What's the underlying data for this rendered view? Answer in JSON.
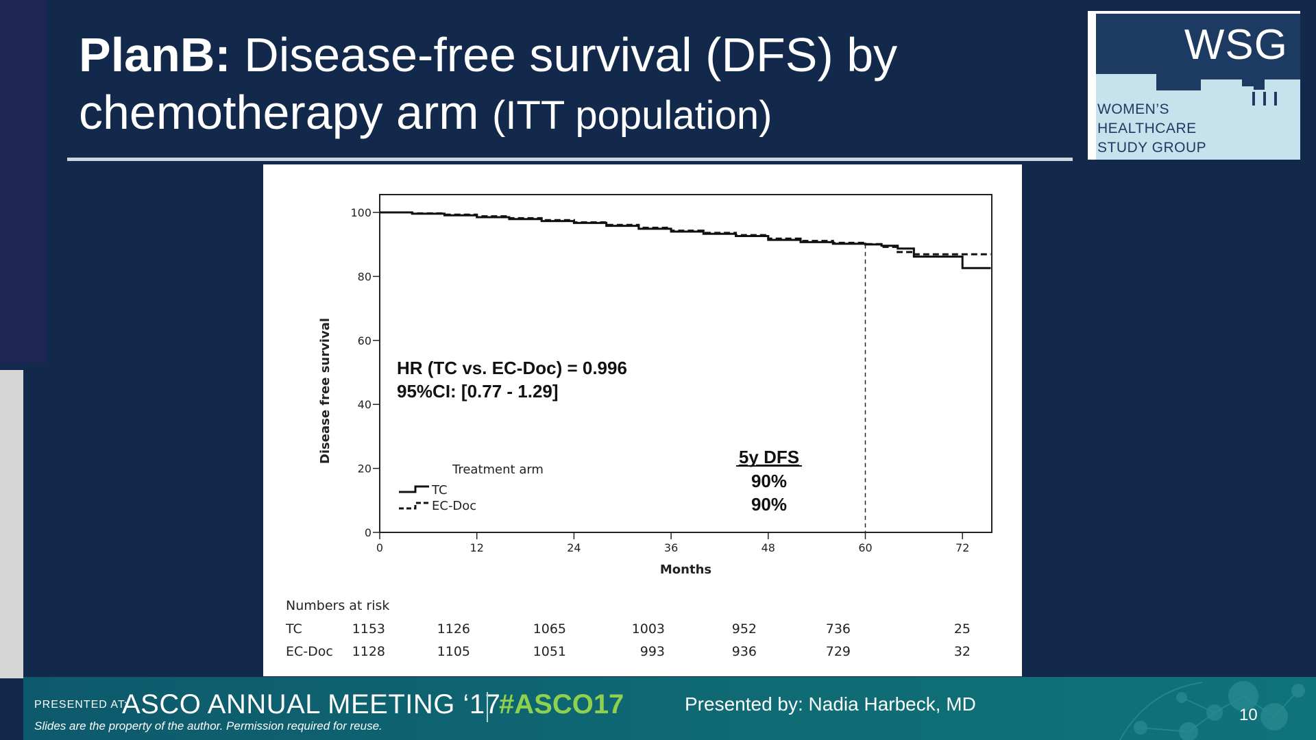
{
  "slide": {
    "title_bold": "PlanB:",
    "title_line1": " Disease-free survival (DFS) by",
    "title_line2": "chemotherapy arm ",
    "title_small": "(ITT population)"
  },
  "logo": {
    "acronym": "WSG",
    "line1": "WOMEN’S",
    "line2": "HEALTHCARE",
    "line3": "STUDY GROUP"
  },
  "chart_data": {
    "type": "line",
    "xlabel": "Months",
    "ylabel": "Disease free survival",
    "xlim": [
      0,
      76
    ],
    "ylim": [
      0,
      105
    ],
    "x_ticks": [
      0,
      12,
      24,
      36,
      48,
      60,
      72
    ],
    "y_ticks": [
      0,
      20,
      40,
      60,
      80,
      100
    ],
    "reference_line_x": 60,
    "legend": {
      "title": "Treatment arm",
      "placement": "bottom-left"
    },
    "series": [
      {
        "name": "TC",
        "style": "solid",
        "x": [
          0,
          4,
          8,
          12,
          16,
          20,
          24,
          28,
          32,
          36,
          40,
          44,
          48,
          52,
          56,
          60,
          62,
          64,
          66,
          68,
          70,
          72,
          75.5
        ],
        "y": [
          100,
          99.6,
          99.1,
          98.5,
          97.9,
          97.3,
          96.7,
          95.8,
          94.9,
          94.0,
          93.3,
          92.6,
          91.4,
          90.7,
          90.2,
          90.0,
          89.6,
          88.7,
          86.2,
          86.2,
          86.2,
          82.6,
          82.6
        ]
      },
      {
        "name": "EC-Doc",
        "style": "dashed",
        "x": [
          0,
          4,
          8,
          12,
          16,
          20,
          24,
          28,
          32,
          36,
          40,
          44,
          48,
          52,
          56,
          60,
          62,
          64,
          66,
          68,
          70,
          72,
          75.5
        ],
        "y": [
          100,
          99.7,
          99.3,
          98.8,
          98.2,
          97.6,
          96.9,
          96.1,
          95.2,
          94.3,
          93.6,
          92.9,
          91.8,
          91.1,
          90.5,
          90.1,
          89.2,
          87.6,
          86.9,
          86.9,
          86.9,
          86.9,
          86.9
        ]
      }
    ],
    "annotations": {
      "hr_line1": "HR (TC vs. EC-Doc) = 0.996",
      "hr_line2": "95%CI: [0.77 - 1.29]",
      "dfs_heading": "5y DFS",
      "dfs_tc": "90%",
      "dfs_ecdoc": "90%"
    },
    "risk_table": {
      "title": "Numbers at risk",
      "rows": [
        {
          "label": "TC",
          "values": [
            "1153",
            "1126",
            "1065",
            "1003",
            "952",
            "736",
            "25"
          ]
        },
        {
          "label": "EC-Doc",
          "values": [
            "1128",
            "1105",
            "1051",
            "993",
            "936",
            "729",
            "32"
          ]
        }
      ]
    }
  },
  "footer": {
    "presented_at": "PRESENTED AT:",
    "meeting": "ASCO ANNUAL MEETING ‘17",
    "hashtag": "#ASCO17",
    "presenter": "Presented by: Nadia Harbeck, MD",
    "property_note": "Slides are the property of the author. Permission required for reuse.",
    "page_number": "10"
  },
  "colors": {
    "background": "#13294b",
    "footer": "#0f6b74",
    "accent_green": "#8fd14f"
  }
}
